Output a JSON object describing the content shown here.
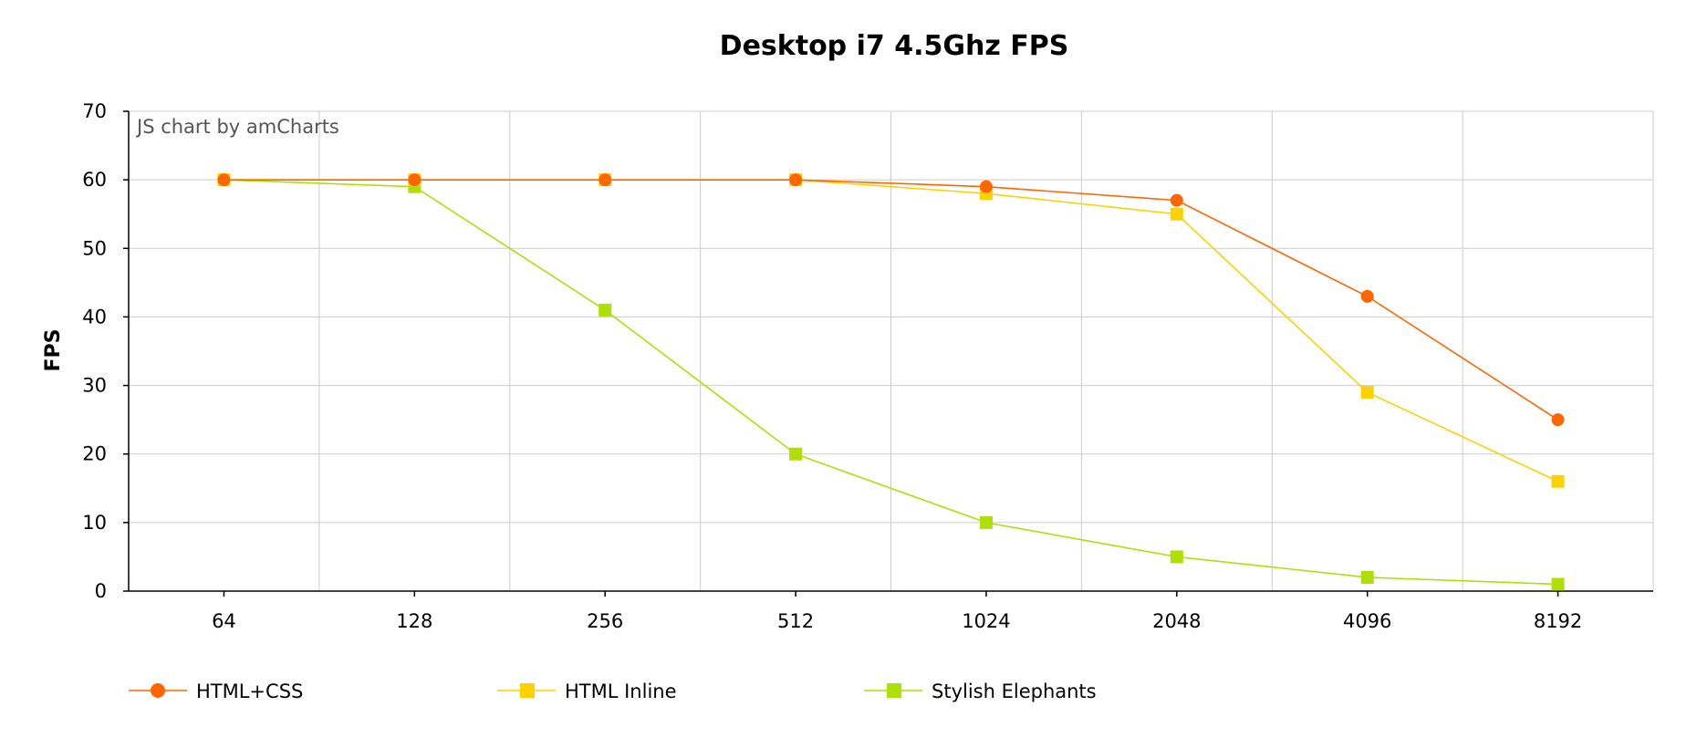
{
  "chart_data": {
    "type": "line",
    "title": "Desktop i7 4.5Ghz FPS",
    "ylabel": "FPS",
    "xlabel": "",
    "credit": "JS chart by amCharts",
    "categories": [
      "64",
      "128",
      "256",
      "512",
      "1024",
      "2048",
      "4096",
      "8192"
    ],
    "ylim": [
      0,
      70
    ],
    "yticks": [
      0,
      10,
      20,
      30,
      40,
      50,
      60,
      70
    ],
    "grid": true,
    "legend_position": "bottom-left",
    "series": [
      {
        "name": "HTML+CSS",
        "color": "#FF6600",
        "marker": "circle",
        "values": [
          60,
          60,
          60,
          60,
          59,
          57,
          43,
          25
        ]
      },
      {
        "name": "HTML Inline",
        "color": "#FCD202",
        "marker": "square",
        "values": [
          60,
          60,
          60,
          60,
          58,
          55,
          29,
          16
        ]
      },
      {
        "name": "Stylish Elephants",
        "color": "#B0DE09",
        "marker": "square",
        "values": [
          60,
          59,
          41,
          20,
          10,
          5,
          2,
          1
        ]
      }
    ]
  }
}
